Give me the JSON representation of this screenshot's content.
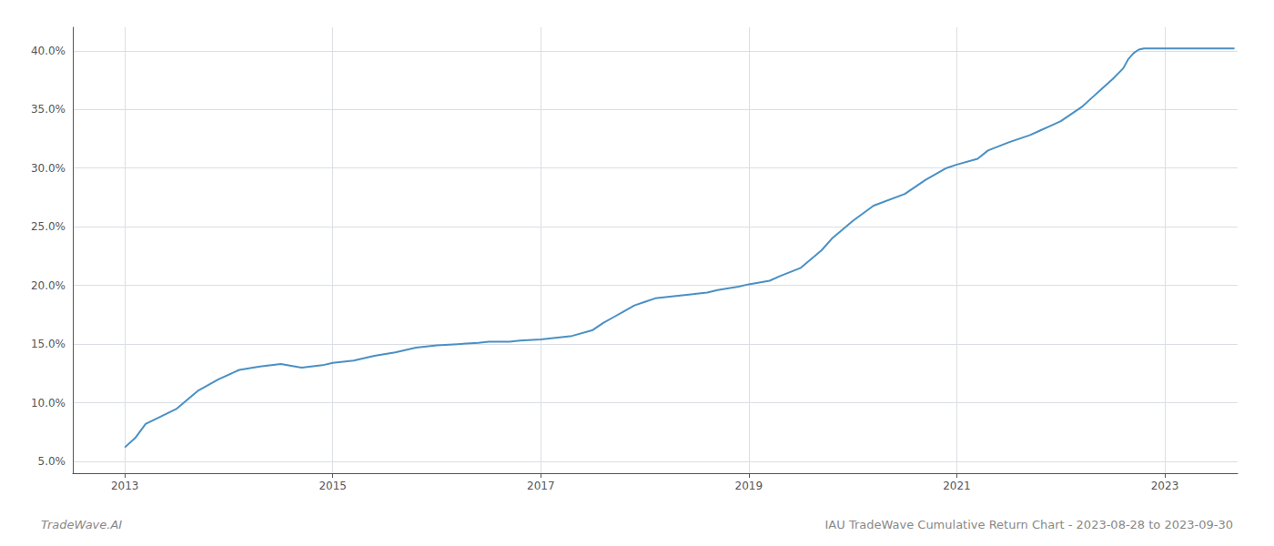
{
  "chart_data": {
    "type": "line",
    "title": "IAU TradeWave Cumulative Return Chart - 2023-08-28 to 2023-09-30",
    "annotations": [
      "TradeWave.AI"
    ],
    "color": "#4a90c4",
    "grid": true,
    "x": [
      2013.0,
      2013.1,
      2013.2,
      2013.5,
      2013.7,
      2013.9,
      2014.1,
      2014.3,
      2014.5,
      2014.7,
      2014.9,
      2015.0,
      2015.2,
      2015.4,
      2015.6,
      2015.8,
      2016.0,
      2016.2,
      2016.4,
      2016.5,
      2016.7,
      2016.8,
      2017.0,
      2017.1,
      2017.3,
      2017.5,
      2017.6,
      2017.7,
      2017.8,
      2017.9,
      2018.0,
      2018.1,
      2018.3,
      2018.5,
      2018.6,
      2018.7,
      2018.9,
      2019.0,
      2019.2,
      2019.3,
      2019.5,
      2019.7,
      2019.8,
      2020.0,
      2020.2,
      2020.5,
      2020.7,
      2020.9,
      2021.0,
      2021.2,
      2021.3,
      2021.5,
      2021.7,
      2021.8,
      2021.9,
      2022.0,
      2022.1,
      2022.2,
      2022.3,
      2022.4,
      2022.5,
      2022.6,
      2022.65,
      2022.7,
      2022.75,
      2022.8,
      2023.0,
      2023.2,
      2023.5,
      2023.67
    ],
    "values": [
      0.062,
      0.07,
      0.082,
      0.095,
      0.11,
      0.12,
      0.128,
      0.131,
      0.133,
      0.13,
      0.132,
      0.134,
      0.136,
      0.14,
      0.143,
      0.147,
      0.149,
      0.15,
      0.151,
      0.152,
      0.152,
      0.153,
      0.154,
      0.155,
      0.157,
      0.162,
      0.168,
      0.173,
      0.178,
      0.183,
      0.186,
      0.189,
      0.191,
      0.193,
      0.194,
      0.196,
      0.199,
      0.201,
      0.204,
      0.208,
      0.215,
      0.23,
      0.24,
      0.255,
      0.268,
      0.278,
      0.29,
      0.3,
      0.303,
      0.308,
      0.315,
      0.322,
      0.328,
      0.332,
      0.336,
      0.34,
      0.346,
      0.352,
      0.36,
      0.368,
      0.376,
      0.385,
      0.393,
      0.398,
      0.401,
      0.402,
      0.402,
      0.402,
      0.402,
      0.402
    ],
    "xlim": [
      2012.5,
      2023.7
    ],
    "xticks": [
      2013,
      2015,
      2017,
      2019,
      2021,
      2023
    ],
    "ylim": [
      0.04,
      0.42
    ],
    "yticks": [
      {
        "value": 0.05,
        "label": "5.0%"
      },
      {
        "value": 0.1,
        "label": "10.0%"
      },
      {
        "value": 0.15,
        "label": "15.0%"
      },
      {
        "value": 0.2,
        "label": "20.0%"
      },
      {
        "value": 0.25,
        "label": "25.0%"
      },
      {
        "value": 0.3,
        "label": "30.0%"
      },
      {
        "value": 0.35,
        "label": "35.0%"
      },
      {
        "value": 0.4,
        "label": "40.0%"
      }
    ]
  }
}
